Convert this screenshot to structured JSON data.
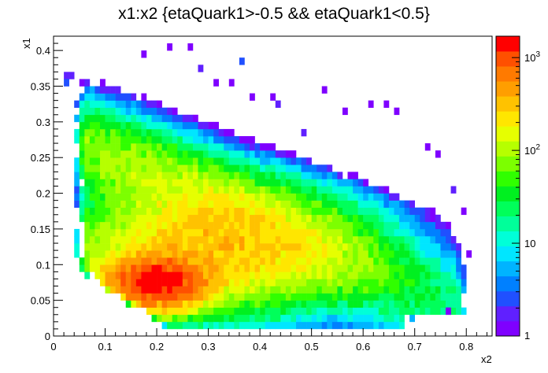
{
  "chart_data": {
    "type": "heatmap",
    "title": "x1:x2 {etaQuark1>-0.5 && etaQuark1<0.5}",
    "xlabel": "x2",
    "ylabel": "x1",
    "xlim": [
      0,
      0.85
    ],
    "ylim": [
      0,
      0.42
    ],
    "x_ticks": [
      "0",
      "0.1",
      "0.2",
      "0.3",
      "0.4",
      "0.5",
      "0.6",
      "0.7",
      "0.8"
    ],
    "y_ticks": [
      "0",
      "0.05",
      "0.1",
      "0.15",
      "0.2",
      "0.25",
      "0.3",
      "0.35",
      "0.4"
    ],
    "colorbar": {
      "scale": "log",
      "range": [
        1,
        1700
      ],
      "tick_labels": [
        {
          "base": "1",
          "exp": ""
        },
        {
          "base": "10",
          "exp": ""
        },
        {
          "base": "10",
          "exp": "2"
        },
        {
          "base": "10",
          "exp": "3"
        }
      ],
      "palette": [
        "#7f00ff",
        "#6020ff",
        "#2050ff",
        "#0080ff",
        "#00b4ff",
        "#00e6ff",
        "#00ffd8",
        "#00ff9a",
        "#00ff5a",
        "#00f020",
        "#30ff00",
        "#7cff00",
        "#b6ff00",
        "#e6ff00",
        "#ffe600",
        "#ffc200",
        "#ff9e00",
        "#ff7a00",
        "#ff5000",
        "#ff0000"
      ]
    },
    "bin_width_x": 0.01,
    "bin_width_y": 0.01,
    "peak_bin": {
      "x2": 0.2,
      "x1": 0.075,
      "counts": 1500
    },
    "description_of_density": "counts highest near x2≈0.17–0.27, x1≈0.06–0.10; falling off toward large x1 and large x2"
  }
}
